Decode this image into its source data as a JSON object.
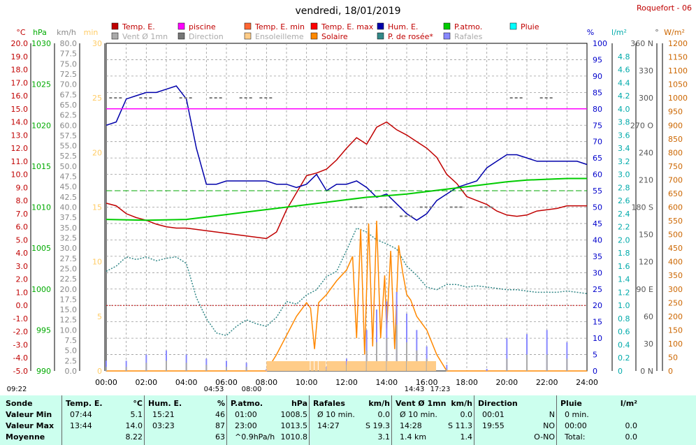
{
  "title": "vendredi, 18/01/2019",
  "station": "Roquefort - 06",
  "legend": [
    {
      "label": "Temp. E.",
      "color": "#c00000",
      "active": true
    },
    {
      "label": "piscine",
      "color": "#ff00ff",
      "active": true
    },
    {
      "label": "Temp. E. min",
      "color": "#ff6633",
      "active": true
    },
    {
      "label": "Temp. E. max",
      "color": "#ff0000",
      "active": true
    },
    {
      "label": "Hum. E.",
      "color": "#0000aa",
      "active": true
    },
    {
      "label": "P.atmo.",
      "color": "#00cc00",
      "active": true
    },
    {
      "label": "Pluie",
      "color": "#00ffff",
      "active": true
    },
    {
      "label": "Vent Ø 1mn",
      "color": "#aaaaaa",
      "active": false
    },
    {
      "label": "Direction",
      "color": "#777777",
      "active": false
    },
    {
      "label": "Ensoleilleme",
      "color": "#ffcc88",
      "active": false
    },
    {
      "label": "Solaire",
      "color": "#ff8800",
      "active": true
    },
    {
      "label": "P. de rosée*",
      "color": "#338888",
      "active": true
    },
    {
      "label": "Rafales",
      "color": "#8888ff",
      "active": false
    }
  ],
  "axes": {
    "unit_labels": [
      "°C",
      "hPa",
      "km/h",
      "min",
      "%",
      "l/m²",
      "°",
      "W/m²"
    ],
    "temp": [
      "20.0",
      "19.0",
      "18.0",
      "17.0",
      "16.0",
      "15.0",
      "14.0",
      "13.0",
      "12.0",
      "11.0",
      "10.0",
      "9.0",
      "8.0",
      "7.0",
      "6.0",
      "5.0",
      "4.0",
      "3.0",
      "2.0",
      "1.0",
      "0.0",
      "-1.0",
      "-2.0",
      "-3.0",
      "-4.0",
      "-5.0"
    ],
    "hpa": [
      "1030",
      "1025",
      "1020",
      "1015",
      "1010",
      "1005",
      "1000",
      "995",
      "990"
    ],
    "kmh": [
      "80.0",
      "77.5",
      "75.0",
      "72.5",
      "70.0",
      "67.5",
      "65.0",
      "62.5",
      "60.0",
      "57.5",
      "55.0",
      "52.5",
      "50.0",
      "47.5",
      "45.0",
      "42.5",
      "40.0",
      "37.5",
      "35.0",
      "32.5",
      "30.0",
      "27.5",
      "25.0",
      "22.5",
      "20.0",
      "17.5",
      "15.0",
      "12.5",
      "10.0",
      "7.5",
      "5.0",
      "2.5",
      "0.0"
    ],
    "minutes": [
      "30",
      "25",
      "20",
      "15",
      "10",
      "5",
      "0"
    ],
    "pct": [
      "100",
      "95",
      "90",
      "85",
      "80",
      "75",
      "70",
      "65",
      "60",
      "55",
      "50",
      "45",
      "40",
      "35",
      "30",
      "25",
      "20",
      "15",
      "10",
      "5",
      "0"
    ],
    "rain": [
      "4.8",
      "4.6",
      "4.4",
      "4.2",
      "4.0",
      "3.8",
      "3.6",
      "3.4",
      "3.2",
      "3.0",
      "2.8",
      "2.6",
      "2.4",
      "2.2",
      "2.0",
      "1.8",
      "1.6",
      "1.4",
      "1.2",
      "1.0",
      "0.8",
      "0.6",
      "0.4",
      "0.2",
      "0"
    ],
    "dir": [
      "360 N",
      "330",
      "300",
      "270 O",
      "240",
      "210",
      "180 S",
      "150",
      "120",
      "90 E",
      "60",
      "30",
      "0 N"
    ],
    "wm2": [
      "1200",
      "1150",
      "1100",
      "1050",
      "1000",
      "950",
      "900",
      "850",
      "800",
      "750",
      "700",
      "650",
      "600",
      "550",
      "500",
      "450",
      "400",
      "350",
      "300",
      "250",
      "200",
      "150",
      "100",
      "50",
      "0"
    ],
    "time": [
      "00:00",
      "02:00",
      "04:00",
      "06:00",
      "08:00",
      "10:00",
      "12:00",
      "14:00",
      "16:00",
      "18:00",
      "20:00",
      "22:00",
      "24:00"
    ]
  },
  "sun_events": [
    "09:22",
    "04:53",
    "08:00",
    "14:43",
    "17:23"
  ],
  "footer": {
    "sonde": {
      "title": "Sonde",
      "rows": [
        "Valeur Min",
        "Valeur Max",
        "Moyenne"
      ]
    },
    "temp": {
      "title": "Temp. E.",
      "unit": "°C",
      "times": [
        "07:44",
        "13:44",
        ""
      ],
      "values": [
        "5.1",
        "14.0",
        "8.22"
      ]
    },
    "hum": {
      "title": "Hum. E.",
      "unit": "%",
      "times": [
        "15:21",
        "03:23",
        ""
      ],
      "values": [
        "46",
        "87",
        "63"
      ]
    },
    "patmo": {
      "title": "P.atmo.",
      "unit": "hPa",
      "times": [
        "01:00",
        "23:00",
        "^0.9hPa/h"
      ],
      "values": [
        "1008.5",
        "1013.5",
        "1010.8"
      ]
    },
    "rafales": {
      "title": "Rafales",
      "unit": "km/h",
      "times": [
        "Ø 10 min.",
        "14:27",
        ""
      ],
      "values": [
        "0.0",
        "S 19.3",
        "3.1"
      ]
    },
    "vent": {
      "title": "Vent Ø 1mn",
      "unit": "km/h",
      "times": [
        "Ø 10 min.",
        "14:28",
        "1.4 km"
      ],
      "values": [
        "0.0",
        "S 11.3",
        "1.4"
      ]
    },
    "direction": {
      "title": "Direction",
      "times": [
        "00:01",
        "19:55",
        ""
      ],
      "values": [
        "N",
        "NO",
        "O-NO"
      ]
    },
    "pluie": {
      "title": "Pluie",
      "unit": "l/m²",
      "times": [
        "0 min.",
        "00:00",
        "Total:"
      ],
      "values": [
        "",
        "0.0",
        "0.0"
      ]
    }
  },
  "chart_data": {
    "type": "line",
    "title": "vendredi, 18/01/2019",
    "x_unit": "hours",
    "xlim": [
      0,
      24
    ],
    "series": [
      {
        "name": "Temp. E.",
        "axis": "°C",
        "color": "#c00000",
        "x": [
          0,
          0.5,
          1,
          1.5,
          2,
          2.5,
          3,
          3.5,
          4,
          4.5,
          5,
          5.5,
          6,
          6.5,
          7,
          7.5,
          8,
          8.5,
          9,
          9.5,
          10,
          10.5,
          11,
          11.5,
          12,
          12.5,
          13,
          13.5,
          14,
          14.5,
          15,
          15.5,
          16,
          16.5,
          17,
          17.5,
          18,
          18.5,
          19,
          19.5,
          20,
          20.5,
          21,
          21.5,
          22,
          22.5,
          23,
          23.5,
          24
        ],
        "y": [
          7.8,
          7.6,
          7.0,
          6.7,
          6.5,
          6.2,
          6.0,
          5.9,
          5.9,
          5.8,
          5.7,
          5.6,
          5.5,
          5.4,
          5.3,
          5.2,
          5.1,
          5.6,
          7.3,
          8.6,
          9.9,
          10.1,
          10.4,
          11.1,
          12.0,
          12.8,
          12.3,
          13.6,
          14.0,
          13.4,
          13.0,
          12.5,
          12.0,
          11.3,
          10.0,
          9.3,
          8.3,
          8.0,
          7.7,
          7.2,
          6.9,
          6.8,
          6.9,
          7.2,
          7.3,
          7.4,
          7.6,
          7.6,
          7.6
        ]
      },
      {
        "name": "Hum. E.",
        "axis": "%",
        "color": "#0000aa",
        "x": [
          0,
          0.5,
          1,
          1.5,
          2,
          2.5,
          3,
          3.5,
          4,
          4.5,
          5,
          5.5,
          6,
          6.5,
          7,
          7.5,
          8,
          8.5,
          9,
          9.5,
          10,
          10.5,
          11,
          11.5,
          12,
          12.5,
          13,
          13.5,
          14,
          14.5,
          15,
          15.5,
          16,
          16.5,
          17,
          17.5,
          18,
          18.5,
          19,
          19.5,
          20,
          20.5,
          21,
          21.5,
          22,
          22.5,
          23,
          23.5,
          24
        ],
        "y": [
          75,
          76,
          83,
          84,
          85,
          85,
          86,
          87,
          83,
          68,
          57,
          57,
          58,
          58,
          58,
          58,
          58,
          57,
          57,
          56,
          57,
          60,
          55,
          57,
          57,
          58,
          56,
          53,
          54,
          51,
          48,
          46,
          48,
          52,
          54,
          56,
          57,
          58,
          62,
          64,
          66,
          66,
          65,
          64,
          64,
          64,
          64,
          64,
          63
        ]
      },
      {
        "name": "P.atmo.",
        "axis": "hPa",
        "color": "#00cc00",
        "x": [
          0,
          2,
          4,
          5,
          6,
          7,
          8,
          9,
          10,
          11,
          12,
          13,
          14,
          15,
          16,
          17,
          18,
          19,
          20,
          21,
          22,
          23,
          24
        ],
        "y": [
          1008.5,
          1008.4,
          1008.5,
          1008.8,
          1009.1,
          1009.4,
          1009.7,
          1010.0,
          1010.3,
          1010.6,
          1010.9,
          1011.2,
          1011.4,
          1011.6,
          1011.9,
          1012.2,
          1012.5,
          1012.8,
          1013.1,
          1013.3,
          1013.4,
          1013.5,
          1013.5
        ]
      },
      {
        "name": "P. de rosée*",
        "axis": "°C",
        "color": "#338888",
        "x": [
          0,
          0.5,
          1,
          1.5,
          2,
          2.5,
          3,
          3.5,
          4,
          4.5,
          5,
          5.5,
          6,
          6.5,
          7,
          7.5,
          8,
          8.5,
          9,
          9.5,
          10,
          10.5,
          11,
          11.5,
          12,
          12.5,
          13,
          13.5,
          14,
          14.5,
          15,
          15.5,
          16,
          16.5,
          17,
          17.5,
          18,
          18.5,
          19,
          19.5,
          20,
          20.5,
          21,
          21.5,
          22,
          22.5,
          23,
          23.5,
          24
        ],
        "y": [
          2.6,
          3.0,
          3.7,
          3.5,
          3.7,
          3.4,
          3.6,
          3.7,
          3.2,
          0.6,
          -1.0,
          -2.1,
          -2.3,
          -1.6,
          -1.1,
          -1.4,
          -1.6,
          -0.9,
          0.3,
          0.1,
          0.8,
          1.2,
          2.2,
          2.6,
          4.2,
          5.9,
          5.6,
          5.0,
          4.7,
          4.3,
          3.0,
          2.3,
          1.4,
          1.2,
          1.6,
          1.6,
          1.4,
          1.5,
          1.4,
          1.3,
          1.2,
          1.2,
          1.1,
          1.0,
          1.0,
          1.0,
          1.1,
          1.0,
          0.9
        ]
      },
      {
        "name": "Solaire",
        "axis": "W/m²",
        "color": "#ff8800",
        "x": [
          0,
          8,
          8.5,
          9,
          9.5,
          10,
          10.2,
          10.4,
          10.6,
          11,
          11.5,
          12,
          12.3,
          12.5,
          12.7,
          12.9,
          13.1,
          13.3,
          13.5,
          13.7,
          13.9,
          14,
          14.2,
          14.4,
          14.6,
          14.8,
          15,
          15.2,
          15.5,
          16,
          16.5,
          17,
          24
        ],
        "y": [
          0,
          0,
          60,
          130,
          200,
          250,
          230,
          80,
          250,
          280,
          330,
          370,
          420,
          120,
          520,
          60,
          540,
          90,
          550,
          120,
          350,
          150,
          440,
          80,
          460,
          360,
          280,
          260,
          200,
          150,
          60,
          0,
          0
        ]
      },
      {
        "name": "Rafales",
        "axis": "km/h",
        "color": "#8888ff",
        "x": [
          0,
          1,
          2,
          3,
          4,
          5,
          6,
          7,
          8,
          9,
          10,
          11,
          12,
          13,
          13.5,
          14,
          14.5,
          15,
          15.5,
          16,
          17,
          18,
          19,
          20,
          21,
          22,
          23,
          24
        ],
        "y": [
          2.5,
          2.5,
          4,
          5,
          4,
          3,
          2.5,
          2,
          0.5,
          0,
          1,
          1,
          3,
          10,
          15,
          17,
          19.3,
          14,
          10,
          6,
          1.5,
          0,
          0.5,
          8,
          9,
          10,
          7,
          0
        ]
      },
      {
        "name": "Vent Ø 1mn",
        "axis": "km/h",
        "color": "#aaaaaa",
        "x": [
          0,
          1,
          2,
          3,
          4,
          5,
          6,
          7,
          8,
          9,
          10,
          11,
          12,
          13,
          13.5,
          14,
          14.5,
          15,
          15.5,
          16,
          17,
          18,
          19,
          20,
          21,
          22,
          23,
          24
        ],
        "y": [
          1,
          1,
          2,
          2.5,
          2,
          1.5,
          1,
          1,
          0,
          0,
          0.5,
          0.5,
          1.5,
          5,
          7,
          8,
          11.3,
          7,
          5,
          3,
          0.5,
          0,
          0,
          3,
          4,
          4,
          3,
          0
        ]
      },
      {
        "name": "piscine",
        "axis": "°C",
        "color": "#ff00ff",
        "x": [
          0,
          24
        ],
        "y": [
          15,
          15
        ]
      },
      {
        "name": "Ensoleilleme",
        "axis": "min",
        "color": "#ffcc88",
        "x": [
          8,
          10.2,
          10.4,
          10.6,
          11,
          12,
          13,
          14,
          15,
          16,
          16.5
        ],
        "y": [
          1,
          1,
          1,
          1,
          1,
          1,
          1,
          1,
          1,
          1,
          1
        ]
      },
      {
        "name": "Direction",
        "axis": "°",
        "color": "#777777",
        "x": [
          0.5,
          2,
          4,
          5.5,
          7,
          8,
          12.5,
          14,
          15,
          16,
          17.5,
          19,
          20.5,
          22
        ],
        "y": [
          300,
          300,
          300,
          300,
          300,
          300,
          180,
          180,
          170,
          180,
          180,
          180,
          300,
          300
        ]
      }
    ]
  }
}
